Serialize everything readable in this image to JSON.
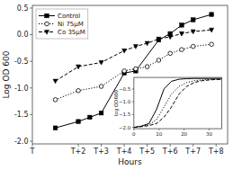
{
  "chart_data": [
    {
      "type": "line",
      "xlabel": "Hours",
      "ylabel": "Log OD 600",
      "xlim": [
        0,
        8.5
      ],
      "ylim": [
        -2.05,
        0.55
      ],
      "xticks": [
        {
          "value": 0,
          "label": "T"
        },
        {
          "value": 2,
          "label": "T+2"
        },
        {
          "value": 3,
          "label": "T+3"
        },
        {
          "value": 4,
          "label": "T+4"
        },
        {
          "value": 5,
          "label": "T+5"
        },
        {
          "value": 6,
          "label": "T+6"
        },
        {
          "value": 7,
          "label": "T+7"
        },
        {
          "value": 8,
          "label": "T+8"
        }
      ],
      "yticks": [
        {
          "value": -2.0,
          "label": "-2.0"
        },
        {
          "value": -1.5,
          "label": "-1.5"
        },
        {
          "value": -1.0,
          "label": "-1.0"
        },
        {
          "value": -0.5,
          "label": "-0.5"
        },
        {
          "value": 0.0,
          "label": "0.0"
        },
        {
          "value": 0.5,
          "label": "0.5"
        }
      ],
      "legend": "upper left",
      "grid": false,
      "series": [
        {
          "name": "Control",
          "color": "#000000",
          "marker": "square",
          "line_style": "solid",
          "x": [
            1.0,
            2.0,
            2.5,
            3.0,
            4.0,
            4.5,
            5.5,
            6.0,
            6.5,
            7.0,
            7.8
          ],
          "values": [
            -1.75,
            -1.63,
            -1.55,
            -1.47,
            -0.72,
            -0.68,
            -0.1,
            0.02,
            0.18,
            0.28,
            0.38
          ],
          "error": 0.025
        },
        {
          "name": "Ni 75μM",
          "color": "#000000",
          "marker": "open_circle",
          "line_style": "dotted",
          "x": [
            1.0,
            2.0,
            3.0,
            4.0,
            4.5,
            5.0,
            5.5,
            6.0,
            6.5,
            7.0,
            7.8
          ],
          "values": [
            -1.22,
            -1.05,
            -0.97,
            -0.68,
            -0.64,
            -0.6,
            -0.48,
            -0.35,
            -0.28,
            -0.22,
            -0.18
          ],
          "error": 0.025
        },
        {
          "name": "Co 35μM",
          "color": "#000000",
          "marker": "triangle_down",
          "line_style": "dashed",
          "x": [
            1.0,
            2.0,
            3.0,
            4.0,
            4.5,
            5.0,
            5.5,
            6.0,
            6.5,
            7.0,
            7.8
          ],
          "values": [
            -0.87,
            -0.6,
            -0.52,
            -0.3,
            -0.22,
            -0.16,
            -0.08,
            -0.04,
            0.02,
            0.06,
            0.09
          ],
          "error": 0.025
        }
      ]
    },
    {
      "type": "line",
      "ylabel": "log OD600",
      "xlim": [
        0,
        35
      ],
      "ylim": [
        -2.05,
        -0.05
      ],
      "xticks": [
        0,
        10,
        20,
        30
      ],
      "yticks": [
        {
          "value": -2.0,
          "label": "−2.0"
        },
        {
          "value": -1.5,
          "label": "−1.5"
        },
        {
          "value": -1.0,
          "label": "−1.0"
        },
        {
          "value": -0.5,
          "label": "−0.5"
        }
      ],
      "grid": false,
      "x": [
        0,
        3,
        6,
        9,
        12,
        15,
        18,
        21,
        24,
        27,
        30,
        33,
        35
      ],
      "series": [
        {
          "color": "#000000",
          "line_style": "solid",
          "values": [
            -2.0,
            -1.95,
            -1.85,
            -1.3,
            -0.5,
            -0.2,
            -0.12,
            -0.1,
            -0.09,
            -0.09,
            -0.09,
            -0.09,
            -0.09
          ]
        },
        {
          "color": "#000000",
          "line_style": "dotted",
          "values": [
            -2.0,
            -1.95,
            -1.9,
            -1.7,
            -1.2,
            -0.7,
            -0.4,
            -0.25,
            -0.18,
            -0.15,
            -0.13,
            -0.12,
            -0.12
          ]
        },
        {
          "color": "#000000",
          "line_style": "dashed",
          "values": [
            -2.0,
            -1.97,
            -1.93,
            -1.85,
            -1.6,
            -1.2,
            -0.7,
            -0.4,
            -0.25,
            -0.18,
            -0.15,
            -0.13,
            -0.13
          ]
        }
      ]
    }
  ]
}
